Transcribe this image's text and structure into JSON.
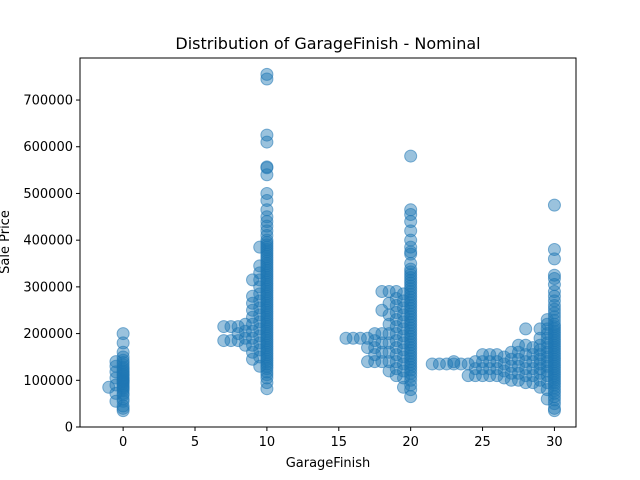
{
  "chart_data": {
    "type": "scatter",
    "title": "Distribution of GarageFinish - Nominal",
    "xlabel": "GarageFinish",
    "ylabel": "Sale Price",
    "xlim": [
      -3,
      31.5
    ],
    "ylim": [
      0,
      790000
    ],
    "xticks": [
      0,
      5,
      10,
      15,
      20,
      25,
      30
    ],
    "yticks": [
      0,
      100000,
      200000,
      300000,
      400000,
      500000,
      600000,
      700000
    ],
    "grid": false,
    "marker_color": "#1f77b4",
    "clusters": [
      {
        "x": 0,
        "values": [
          35000,
          40000,
          45000,
          55000,
          60000,
          68000,
          72000,
          78000,
          82000,
          85000,
          88000,
          92000,
          95000,
          98000,
          100000,
          103000,
          106000,
          110000,
          113000,
          117000,
          120000,
          124000,
          128000,
          133000,
          138000,
          143000,
          150000,
          160000,
          180000,
          200000
        ]
      },
      {
        "x": -1,
        "values": [
          85000
        ]
      },
      {
        "x": -0.5,
        "values": [
          55000,
          72000,
          90000,
          105000,
          118000,
          130000,
          140000
        ]
      },
      {
        "x": 10,
        "values": [
          82000,
          95000,
          105000,
          112000,
          118000,
          125000,
          130000,
          135000,
          140000,
          145000,
          150000,
          155000,
          160000,
          165000,
          170000,
          175000,
          180000,
          185000,
          190000,
          195000,
          200000,
          205000,
          210000,
          215000,
          220000,
          225000,
          230000,
          235000,
          240000,
          245000,
          250000,
          255000,
          260000,
          265000,
          270000,
          275000,
          280000,
          285000,
          290000,
          295000,
          300000,
          305000,
          310000,
          315000,
          320000,
          325000,
          330000,
          335000,
          340000,
          345000,
          350000,
          355000,
          360000,
          365000,
          370000,
          375000,
          380000,
          385000,
          390000,
          395000,
          400000,
          410000,
          420000,
          430000,
          440000,
          450000,
          465000,
          485000,
          500000,
          540000,
          555000,
          557000,
          610000,
          625000,
          745000,
          755000
        ]
      },
      {
        "x": 9.5,
        "values": [
          130000,
          150000,
          165000,
          180000,
          195000,
          210000,
          225000,
          240000,
          255000,
          270000,
          285000,
          300000,
          315000,
          330000,
          345000,
          385000
        ]
      },
      {
        "x": 9,
        "values": [
          145000,
          160000,
          175000,
          190000,
          205000,
          220000,
          235000,
          250000,
          265000,
          280000,
          315000
        ]
      },
      {
        "x": 8.5,
        "values": [
          175000,
          190000,
          205000,
          220000
        ]
      },
      {
        "x": 8,
        "values": [
          185000,
          200000,
          215000
        ]
      },
      {
        "x": 7.5,
        "values": [
          185000,
          215000
        ]
      },
      {
        "x": 7,
        "values": [
          185000,
          215000
        ]
      },
      {
        "x": 20,
        "values": [
          65000,
          80000,
          90000,
          100000,
          108000,
          115000,
          122000,
          128000,
          134000,
          140000,
          146000,
          152000,
          158000,
          164000,
          170000,
          176000,
          182000,
          188000,
          194000,
          200000,
          206000,
          212000,
          218000,
          224000,
          230000,
          236000,
          242000,
          248000,
          254000,
          260000,
          266000,
          272000,
          278000,
          284000,
          290000,
          296000,
          302000,
          308000,
          314000,
          320000,
          326000,
          332000,
          338000,
          350000,
          370000,
          375000,
          385000,
          400000,
          420000,
          440000,
          455000,
          465000,
          580000
        ]
      },
      {
        "x": 19.5,
        "values": [
          85000,
          105000,
          120000,
          135000,
          150000,
          165000,
          180000,
          195000,
          210000,
          225000,
          240000,
          255000,
          270000,
          285000
        ]
      },
      {
        "x": 19,
        "values": [
          110000,
          125000,
          140000,
          155000,
          170000,
          185000,
          200000,
          215000,
          230000,
          245000,
          260000,
          275000,
          290000
        ]
      },
      {
        "x": 18.5,
        "values": [
          120000,
          140000,
          160000,
          180000,
          200000,
          220000,
          240000,
          265000,
          290000
        ]
      },
      {
        "x": 18,
        "values": [
          140000,
          160000,
          180000,
          200000,
          250000,
          290000
        ]
      },
      {
        "x": 17.5,
        "values": [
          140000,
          155000,
          170000,
          185000,
          200000
        ]
      },
      {
        "x": 17,
        "values": [
          140000,
          170000,
          190000
        ]
      },
      {
        "x": 16.5,
        "values": [
          190000
        ]
      },
      {
        "x": 16,
        "values": [
          190000
        ]
      },
      {
        "x": 15.5,
        "values": [
          190000
        ]
      },
      {
        "x": 30,
        "values": [
          35000,
          40000,
          50000,
          58000,
          65000,
          72000,
          78000,
          84000,
          90000,
          95000,
          100000,
          105000,
          110000,
          115000,
          120000,
          125000,
          130000,
          135000,
          140000,
          145000,
          150000,
          155000,
          160000,
          165000,
          170000,
          175000,
          180000,
          185000,
          190000,
          195000,
          200000,
          205000,
          210000,
          215000,
          220000,
          228000,
          236000,
          244000,
          252000,
          260000,
          270000,
          280000,
          290000,
          305000,
          318000,
          325000,
          360000,
          380000,
          475000
        ]
      },
      {
        "x": 29.5,
        "values": [
          60000,
          80000,
          95000,
          110000,
          120000,
          130000,
          140000,
          150000,
          160000,
          170000,
          180000,
          190000,
          200000,
          210000,
          220000,
          230000
        ]
      },
      {
        "x": 29,
        "values": [
          85000,
          100000,
          115000,
          125000,
          135000,
          145000,
          155000,
          165000,
          175000,
          190000,
          210000
        ]
      },
      {
        "x": 28.5,
        "values": [
          95000,
          110000,
          125000,
          140000,
          155000,
          170000
        ]
      },
      {
        "x": 28,
        "values": [
          95000,
          110000,
          125000,
          140000,
          155000,
          175000,
          210000
        ]
      },
      {
        "x": 27.5,
        "values": [
          100000,
          115000,
          130000,
          145000,
          160000,
          175000
        ]
      },
      {
        "x": 27,
        "values": [
          100000,
          115000,
          130000,
          145000,
          160000
        ]
      },
      {
        "x": 26.5,
        "values": [
          105000,
          120000,
          135000,
          150000
        ]
      },
      {
        "x": 26,
        "values": [
          110000,
          125000,
          140000,
          155000
        ]
      },
      {
        "x": 25.5,
        "values": [
          110000,
          125000,
          140000,
          155000
        ]
      },
      {
        "x": 25,
        "values": [
          110000,
          125000,
          140000,
          155000
        ]
      },
      {
        "x": 24.5,
        "values": [
          110000,
          125000,
          140000
        ]
      },
      {
        "x": 24,
        "values": [
          110000,
          135000
        ]
      },
      {
        "x": 23.5,
        "values": [
          135000
        ]
      },
      {
        "x": 23,
        "values": [
          135000,
          140000
        ]
      },
      {
        "x": 22.5,
        "values": [
          135000
        ]
      },
      {
        "x": 22,
        "values": [
          135000
        ]
      },
      {
        "x": 21.5,
        "values": [
          135000
        ]
      }
    ]
  }
}
